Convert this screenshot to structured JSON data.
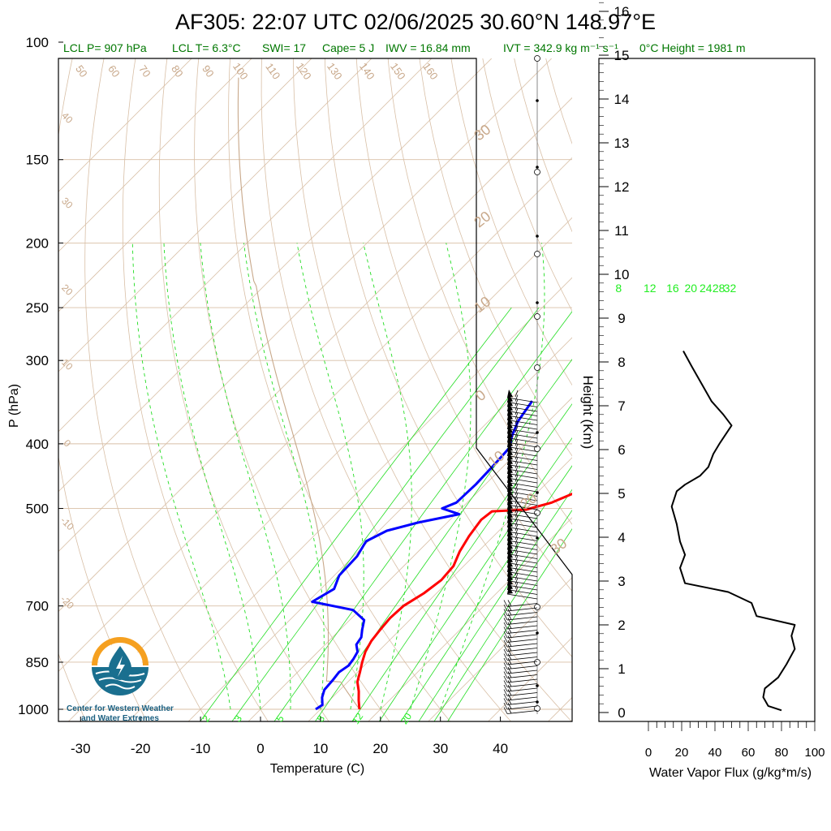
{
  "title": "AF305: 22:07 UTC 02/06/2025  30.60°N 148.97°E",
  "subtitle": {
    "lcl_p": "LCL P= 907 hPa",
    "lcl_t": "LCL T= 6.3°C",
    "swi": "SWI= 17",
    "cape": "Cape= 5 J",
    "iwv": "IWV = 16.84 mm",
    "ivt": "IVT = 342.9 kg m⁻¹ s⁻¹",
    "freezing": "0°C Height = 1981 m"
  },
  "logo": {
    "line1": "Center for Western Weather",
    "line2": "and Water Extremes"
  },
  "colors": {
    "temperature": "#ff0000",
    "dewpoint": "#0000ff",
    "mixing_ratio": "#22dd22",
    "isotherm_adiabat": "#d8bfa6",
    "adiabat_label": "#c8a88a",
    "flux": "#000000",
    "subtitle": "#007700"
  },
  "chart_data": [
    {
      "type": "skewt",
      "ylabel": "P (hPa)",
      "xlabel": "Temperature (C)",
      "ylabel_right": "Height (Km)",
      "xlim": [
        -34,
        50
      ],
      "ylim": [
        1050,
        100
      ],
      "x_ticks": [
        -30,
        -20,
        -10,
        0,
        10,
        20,
        30,
        40
      ],
      "p_ticks": [
        100,
        150,
        200,
        250,
        300,
        400,
        500,
        700,
        850,
        1000
      ],
      "height_ticks": [
        0,
        1,
        2,
        3,
        4,
        5,
        6,
        7,
        8,
        9,
        10,
        11,
        12,
        13,
        14,
        15,
        16
      ],
      "mixing_ratio_labels_top": [
        8,
        12,
        16,
        20,
        24,
        28,
        32
      ],
      "mixing_ratio_labels_bottom": [
        2,
        3,
        5,
        8,
        12,
        20
      ],
      "isotherm_labels": [
        40,
        30,
        20,
        10,
        0,
        -10,
        -20
      ],
      "adiabat_labels_top": [
        50,
        60,
        70,
        80,
        90,
        100,
        110,
        120,
        130,
        140,
        150,
        160
      ],
      "moist_labels_right": [
        30,
        20,
        10,
        0,
        10,
        20,
        30
      ],
      "series": [
        {
          "name": "Temperature",
          "points": [
            [
              16.5,
              1000
            ],
            [
              14.9,
              970
            ],
            [
              13.4,
              940
            ],
            [
              11.6,
              910
            ],
            [
              10.4,
              880
            ],
            [
              9.1,
              850
            ],
            [
              7.9,
              820
            ],
            [
              7.1,
              790
            ],
            [
              6.7,
              760
            ],
            [
              6.4,
              730
            ],
            [
              6.6,
              700
            ],
            [
              7.9,
              670
            ],
            [
              8.6,
              640
            ],
            [
              8.3,
              610
            ],
            [
              6.9,
              580
            ],
            [
              5.9,
              550
            ],
            [
              5.2,
              520
            ],
            [
              5.6,
              505
            ],
            [
              11.0,
              502
            ],
            [
              14.1,
              490
            ],
            [
              16.8,
              470
            ],
            [
              17.5,
              450
            ],
            [
              17.9,
              430
            ],
            [
              16.9,
              410
            ],
            [
              15.6,
              390
            ],
            [
              14.3,
              375
            ],
            [
              13.4,
              360
            ],
            [
              12.5,
              345
            ]
          ]
        },
        {
          "name": "Dewpoint",
          "points": [
            [
              9.2,
              1000
            ],
            [
              9.6,
              985
            ],
            [
              8.3,
              960
            ],
            [
              7.4,
              935
            ],
            [
              7.2,
              905
            ],
            [
              6.9,
              880
            ],
            [
              7.4,
              860
            ],
            [
              7.1,
              840
            ],
            [
              6.6,
              820
            ],
            [
              5.2,
              800
            ],
            [
              4.8,
              780
            ],
            [
              3.7,
              760
            ],
            [
              2.4,
              735
            ],
            [
              -1.1,
              710
            ],
            [
              -9.3,
              690
            ],
            [
              -7.8,
              660
            ],
            [
              -9.2,
              630
            ],
            [
              -9.4,
              590
            ],
            [
              -10.4,
              560
            ],
            [
              -8.7,
              540
            ],
            [
              -4.9,
              525
            ],
            [
              0.6,
              510
            ],
            [
              -3.2,
              500
            ],
            [
              -1.8,
              490
            ],
            [
              -1.6,
              460
            ],
            [
              -1.8,
              430
            ],
            [
              -2.1,
              405
            ],
            [
              -3.6,
              390
            ],
            [
              -5.1,
              370
            ],
            [
              -6.1,
              345
            ]
          ]
        }
      ],
      "wind_column_temp_axis": 46,
      "wind_profile_p_range": [
        1000,
        350
      ]
    },
    {
      "type": "line",
      "name": "Water Vapor Flux",
      "xlabel": "Water Vapor Flux (g/kg*m/s)",
      "ylabel": "Height (Km)",
      "xlim": [
        0,
        100
      ],
      "ylim": [
        -0.2,
        16.2
      ],
      "x_ticks": [
        0,
        20,
        40,
        60,
        80,
        100
      ],
      "points": [
        [
          80,
          0.05
        ],
        [
          72,
          0.15
        ],
        [
          69,
          0.35
        ],
        [
          70,
          0.55
        ],
        [
          78,
          0.8
        ],
        [
          83,
          1.1
        ],
        [
          88,
          1.45
        ],
        [
          86,
          1.75
        ],
        [
          88,
          2.0
        ],
        [
          65,
          2.2
        ],
        [
          62,
          2.5
        ],
        [
          48,
          2.75
        ],
        [
          22,
          2.95
        ],
        [
          19,
          3.3
        ],
        [
          22,
          3.6
        ],
        [
          19,
          3.9
        ],
        [
          17,
          4.3
        ],
        [
          14,
          4.7
        ],
        [
          17,
          5.05
        ],
        [
          22,
          5.2
        ],
        [
          31,
          5.4
        ],
        [
          36,
          5.6
        ],
        [
          39,
          5.9
        ],
        [
          43,
          6.15
        ],
        [
          50,
          6.55
        ],
        [
          45,
          6.8
        ],
        [
          38,
          7.1
        ],
        [
          32,
          7.5
        ],
        [
          26,
          7.9
        ],
        [
          21,
          8.25
        ]
      ]
    }
  ]
}
